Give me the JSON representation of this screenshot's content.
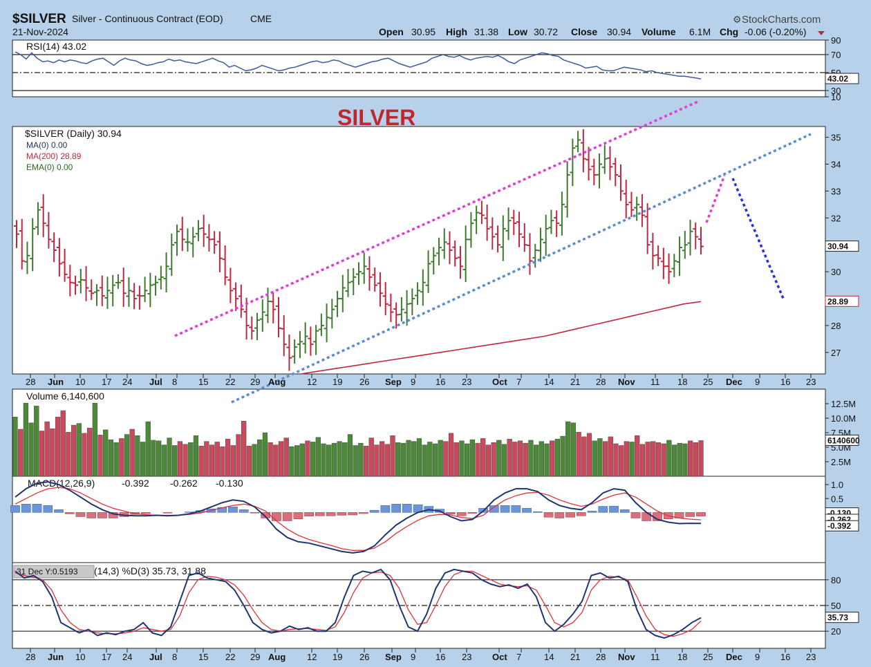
{
  "header": {
    "symbol": "$SILVER",
    "name": "Silver - Continuous Contract (EOD)",
    "exchange": "CME",
    "date": "21-Nov-2024",
    "brand": "StockCharts.com",
    "open_label": "Open",
    "open": "30.95",
    "high_label": "High",
    "high": "31.38",
    "low_label": "Low",
    "low": "30.72",
    "close_label": "Close",
    "close": "30.94",
    "volume_label": "Volume",
    "volume": "6.1M",
    "chg_label": "Chg",
    "chg": "-0.06 (-0.20%)"
  },
  "annotation": {
    "text": "SILVER",
    "color": "#c0272d"
  },
  "colors": {
    "background": "#b8d1ea",
    "panel": "#ffffff",
    "up": "#3d7a2e",
    "down": "#c0273f",
    "rsi_line": "#3d5a9a",
    "macd_line": "#1f3470",
    "signal_line": "#e0303a",
    "hist_pos": "#6c95d8",
    "hist_neg": "#d8707c",
    "pink_trend": "#e03cd8",
    "blue_trend": "#5b8cd0",
    "down_projection": "#2530e0",
    "ma200": "#c0273f"
  },
  "chart_data": [
    {
      "type": "line",
      "name": "RSI",
      "legend": "RSI(14) 43.02",
      "last_value_label": "43.02",
      "y_ticks": [
        "90",
        "70",
        "50",
        "30",
        "10"
      ],
      "ylim": [
        0,
        100
      ],
      "reference_lines": [
        70,
        50,
        30
      ],
      "values": [
        73,
        70,
        65,
        72,
        66,
        62,
        63,
        61,
        64,
        62,
        64,
        63,
        61,
        60,
        63,
        65,
        66,
        62,
        58,
        63,
        66,
        64,
        63,
        60,
        58,
        59,
        61,
        62,
        65,
        63,
        64,
        62,
        61,
        60,
        62,
        64,
        66,
        63,
        61,
        56,
        58,
        55,
        52,
        53,
        55,
        58,
        56,
        54,
        52,
        53,
        55,
        56,
        58,
        60,
        62,
        63,
        61,
        62,
        64,
        63,
        60,
        58,
        56,
        58,
        60,
        62,
        63,
        65,
        66,
        63,
        60,
        58,
        56,
        58,
        60,
        62,
        66,
        68,
        70,
        68,
        67,
        69,
        66,
        64,
        66,
        67,
        68,
        67,
        69,
        66,
        62,
        60,
        64,
        66,
        68,
        70,
        72,
        71,
        69,
        68,
        64,
        62,
        60,
        58,
        55,
        56,
        57,
        53,
        52,
        52,
        54,
        56,
        55,
        54,
        53,
        51,
        52,
        50,
        49,
        48,
        47,
        46,
        46,
        45,
        44,
        43.02
      ]
    },
    {
      "type": "bar",
      "name": "Price",
      "legend": "$SILVER (Daily) 30.94",
      "ma_legends": [
        "MA(0) 0.00",
        "MA(200) 28.89",
        "EMA(0) 0.00"
      ],
      "last_value_label": "30.94",
      "ma200_label": "28.89",
      "y_ticks": [
        "35",
        "34",
        "33",
        "32",
        "31",
        "30",
        "29",
        "28",
        "27"
      ],
      "ylim": [
        26.2,
        35.4
      ],
      "close": [
        31.4,
        30.4,
        30.6,
        31.6,
        32.3,
        31.8,
        31.2,
        30.8,
        30.3,
        29.9,
        29.6,
        29.5,
        29.7,
        29.4,
        29.2,
        29.3,
        29.1,
        29.3,
        29.5,
        29.6,
        29.2,
        29.3,
        29.0,
        29.1,
        29.3,
        29.5,
        29.6,
        29.8,
        30.2,
        31.0,
        31.5,
        31.2,
        31.1,
        31.3,
        31.6,
        31.4,
        31.2,
        31.0,
        30.5,
        29.8,
        29.3,
        29.0,
        28.6,
        28.0,
        27.8,
        28.2,
        28.5,
        28.9,
        28.6,
        27.9,
        27.3,
        26.8,
        27.2,
        27.4,
        27.6,
        27.3,
        27.8,
        28.0,
        28.3,
        28.6,
        29.0,
        29.4,
        29.6,
        29.8,
        30.0,
        30.2,
        29.8,
        29.5,
        29.2,
        28.8,
        28.5,
        28.4,
        28.6,
        28.8,
        29.0,
        29.3,
        29.6,
        30.3,
        30.6,
        30.9,
        31.1,
        30.8,
        30.5,
        30.2,
        31.2,
        31.8,
        32.2,
        32.1,
        31.6,
        31.3,
        31.0,
        31.6,
        31.9,
        31.8,
        31.4,
        31.0,
        30.4,
        30.8,
        31.2,
        31.6,
        31.9,
        31.8,
        32.5,
        33.6,
        34.6,
        34.9,
        34.2,
        33.8,
        33.6,
        34.0,
        34.2,
        33.9,
        33.6,
        33.0,
        32.5,
        32.3,
        32.5,
        32.1,
        31.0,
        30.6,
        30.5,
        30.2,
        30.0,
        30.4,
        30.9,
        31.0,
        31.5,
        31.3,
        30.94
      ],
      "ma200": [
        26.1,
        26.2,
        26.3,
        26.4,
        26.5,
        26.6,
        26.7,
        26.8,
        26.9,
        27.0,
        27.1,
        27.2,
        27.3,
        27.4,
        27.5,
        27.6,
        27.75,
        27.9,
        28.05,
        28.2,
        28.35,
        28.5,
        28.65,
        28.8,
        28.89
      ],
      "trendlines": [
        "pink upper channel",
        "blue lower channel",
        "pink projected rally",
        "blue projected decline"
      ]
    },
    {
      "type": "bar",
      "name": "Volume",
      "legend": "Volume 6,140,600",
      "last_value_label": "6140600",
      "y_ticks": [
        "12.5M",
        "10.0M",
        "7.5M",
        "5.0M",
        "2.5M"
      ],
      "ylim": [
        0,
        15000000
      ],
      "values": [
        10.2,
        8.1,
        12.6,
        9.2,
        12.1,
        7.8,
        9.4,
        8.2,
        10.2,
        11.3,
        7.6,
        8.8,
        9.1,
        7.4,
        8.3,
        12.6,
        7.1,
        8.0,
        6.3,
        5.8,
        6.5,
        7.2,
        8.1,
        7.0,
        5.9,
        9.4,
        6.2,
        6.1,
        5.4,
        6.6,
        5.3,
        6.0,
        5.5,
        5.8,
        7.0,
        5.2,
        6.0,
        5.4,
        5.9,
        5.1,
        6.4,
        5.3,
        7.2,
        9.5,
        5.2,
        5.5,
        6.3,
        7.5,
        5.8,
        5.4,
        6.0,
        6.6,
        5.1,
        5.3,
        5.6,
        6.1,
        5.9,
        6.7,
        5.6,
        5.4,
        5.7,
        6.0,
        5.8,
        7.2,
        5.3,
        5.7,
        5.2,
        6.6,
        5.4,
        6.0,
        5.5,
        7.0,
        5.8,
        5.7,
        6.2,
        6.0,
        6.5,
        5.4,
        5.9,
        5.6,
        6.2,
        6.0,
        7.4,
        5.8,
        6.1,
        5.6,
        6.3,
        5.7,
        6.5,
        5.4,
        5.8,
        6.2,
        5.5,
        6.4,
        5.9,
        6.1,
        5.7,
        6.2,
        5.4,
        6.0,
        5.6,
        6.1,
        6.4,
        6.9,
        9.4,
        9.2,
        7.6,
        6.8,
        7.4,
        6.1,
        6.5,
        6.0,
        6.8,
        5.6,
        5.3,
        6.0,
        5.9,
        7.0,
        5.5,
        5.9,
        6.0,
        5.8,
        5.6,
        6.2,
        5.4,
        5.7,
        5.6,
        6.1,
        5.8,
        6.14
      ]
    },
    {
      "type": "line",
      "name": "MACD",
      "legend_label": "MACD(12,26,9)",
      "legend_macd": "-0.392",
      "legend_signal": "-0.262",
      "legend_hist": "-0.130",
      "last_labels": [
        "-0.130",
        "-0.262",
        "-0.392"
      ],
      "y_ticks": [
        "1.0",
        "0.5"
      ],
      "ylim": [
        -1.8,
        1.3
      ],
      "macd": [
        0.55,
        0.85,
        1.05,
        1.1,
        1.0,
        0.8,
        0.55,
        0.3,
        0.1,
        -0.05,
        -0.1,
        -0.12,
        -0.12,
        -0.1,
        -0.12,
        -0.1,
        -0.05,
        0.05,
        0.2,
        0.35,
        0.45,
        0.4,
        0.2,
        -0.15,
        -0.6,
        -0.9,
        -1.05,
        -1.1,
        -1.2,
        -1.3,
        -1.4,
        -1.45,
        -1.4,
        -1.2,
        -0.8,
        -0.45,
        -0.2,
        0.0,
        0.1,
        0.05,
        -0.15,
        -0.3,
        -0.25,
        0.05,
        0.45,
        0.7,
        0.85,
        0.85,
        0.75,
        0.45,
        0.25,
        0.15,
        0.1,
        0.35,
        0.7,
        0.85,
        0.8,
        0.35,
        0.0,
        -0.25,
        -0.35,
        -0.4,
        -0.39,
        -0.392
      ],
      "signal": [
        0.3,
        0.5,
        0.7,
        0.85,
        0.9,
        0.85,
        0.7,
        0.5,
        0.3,
        0.15,
        0.05,
        -0.05,
        -0.08,
        -0.1,
        -0.1,
        -0.1,
        -0.07,
        -0.02,
        0.07,
        0.17,
        0.25,
        0.3,
        0.22,
        0.05,
        -0.3,
        -0.6,
        -0.82,
        -0.97,
        -1.08,
        -1.18,
        -1.3,
        -1.36,
        -1.36,
        -1.28,
        -1.05,
        -0.75,
        -0.5,
        -0.28,
        -0.12,
        -0.07,
        -0.09,
        -0.18,
        -0.22,
        -0.1,
        0.2,
        0.45,
        0.6,
        0.7,
        0.72,
        0.62,
        0.45,
        0.32,
        0.22,
        0.3,
        0.48,
        0.62,
        0.7,
        0.55,
        0.3,
        0.05,
        -0.12,
        -0.2,
        -0.24,
        -0.262
      ],
      "histogram": [
        0.25,
        0.3,
        0.3,
        0.25,
        0.1,
        -0.05,
        -0.15,
        -0.2,
        -0.2,
        -0.2,
        -0.15,
        -0.07,
        -0.04,
        0.0,
        -0.02,
        0.0,
        0.02,
        0.07,
        0.13,
        0.18,
        0.2,
        0.1,
        -0.02,
        -0.2,
        -0.3,
        -0.3,
        -0.23,
        -0.13,
        -0.12,
        -0.12,
        -0.1,
        -0.09,
        -0.04,
        0.08,
        0.25,
        0.3,
        0.3,
        0.28,
        0.22,
        0.12,
        -0.06,
        -0.12,
        -0.03,
        0.15,
        0.25,
        0.25,
        0.25,
        0.15,
        0.03,
        -0.17,
        -0.2,
        -0.17,
        -0.12,
        0.05,
        0.22,
        0.23,
        0.1,
        -0.2,
        -0.3,
        -0.3,
        -0.23,
        -0.2,
        -0.15,
        -0.13
      ]
    },
    {
      "type": "line",
      "name": "Stochastic",
      "legend": "(14,3) %D(3) 35.73, 31.88",
      "tooltip": "31 Dec Y:0.5193",
      "last_value_label": "35.73",
      "y_ticks": [
        "80",
        "50",
        "20"
      ],
      "ylim": [
        0,
        100
      ],
      "reference_lines": [
        80,
        50,
        20
      ],
      "k": [
        90,
        82,
        85,
        78,
        60,
        30,
        24,
        18,
        22,
        15,
        18,
        16,
        20,
        22,
        30,
        18,
        15,
        25,
        55,
        85,
        88,
        82,
        80,
        78,
        68,
        50,
        30,
        22,
        18,
        20,
        26,
        22,
        24,
        20,
        20,
        30,
        60,
        85,
        90,
        88,
        92,
        80,
        50,
        25,
        20,
        40,
        70,
        88,
        92,
        90,
        88,
        80,
        75,
        72,
        74,
        70,
        75,
        60,
        30,
        20,
        28,
        40,
        55,
        85,
        88,
        82,
        84,
        78,
        45,
        22,
        15,
        12,
        16,
        22,
        30,
        35.73
      ],
      "d": [
        88,
        85,
        83,
        80,
        68,
        45,
        30,
        22,
        20,
        18,
        17,
        17,
        18,
        20,
        24,
        22,
        20,
        22,
        38,
        65,
        80,
        84,
        83,
        80,
        74,
        62,
        45,
        30,
        22,
        20,
        22,
        23,
        23,
        22,
        21,
        25,
        42,
        65,
        82,
        88,
        89,
        85,
        70,
        45,
        28,
        30,
        50,
        72,
        86,
        90,
        90,
        85,
        80,
        75,
        73,
        72,
        73,
        68,
        50,
        30,
        25,
        30,
        42,
        68,
        80,
        84,
        83,
        80,
        60,
        38,
        22,
        16,
        14,
        17,
        22,
        31.88
      ]
    }
  ],
  "x_axis": {
    "labels": [
      {
        "t": "28",
        "b": false
      },
      {
        "t": "Jun",
        "b": true
      },
      {
        "t": "10",
        "b": false
      },
      {
        "t": "17",
        "b": false
      },
      {
        "t": "24",
        "b": false
      },
      {
        "t": "Jul",
        "b": true
      },
      {
        "t": "8",
        "b": false
      },
      {
        "t": "15",
        "b": false
      },
      {
        "t": "22",
        "b": false
      },
      {
        "t": "29",
        "b": false
      },
      {
        "t": "Aug",
        "b": true
      },
      {
        "t": "12",
        "b": false
      },
      {
        "t": "19",
        "b": false
      },
      {
        "t": "26",
        "b": false
      },
      {
        "t": "Sep",
        "b": true
      },
      {
        "t": "9",
        "b": false
      },
      {
        "t": "16",
        "b": false
      },
      {
        "t": "23",
        "b": false
      },
      {
        "t": "Oct",
        "b": true
      },
      {
        "t": "7",
        "b": false
      },
      {
        "t": "14",
        "b": false
      },
      {
        "t": "21",
        "b": false
      },
      {
        "t": "28",
        "b": false
      },
      {
        "t": "Nov",
        "b": true
      },
      {
        "t": "11",
        "b": false
      },
      {
        "t": "18",
        "b": false
      },
      {
        "t": "25",
        "b": false
      },
      {
        "t": "Dec",
        "b": true
      },
      {
        "t": "9",
        "b": false
      },
      {
        "t": "16",
        "b": false
      },
      {
        "t": "23",
        "b": false
      }
    ]
  }
}
